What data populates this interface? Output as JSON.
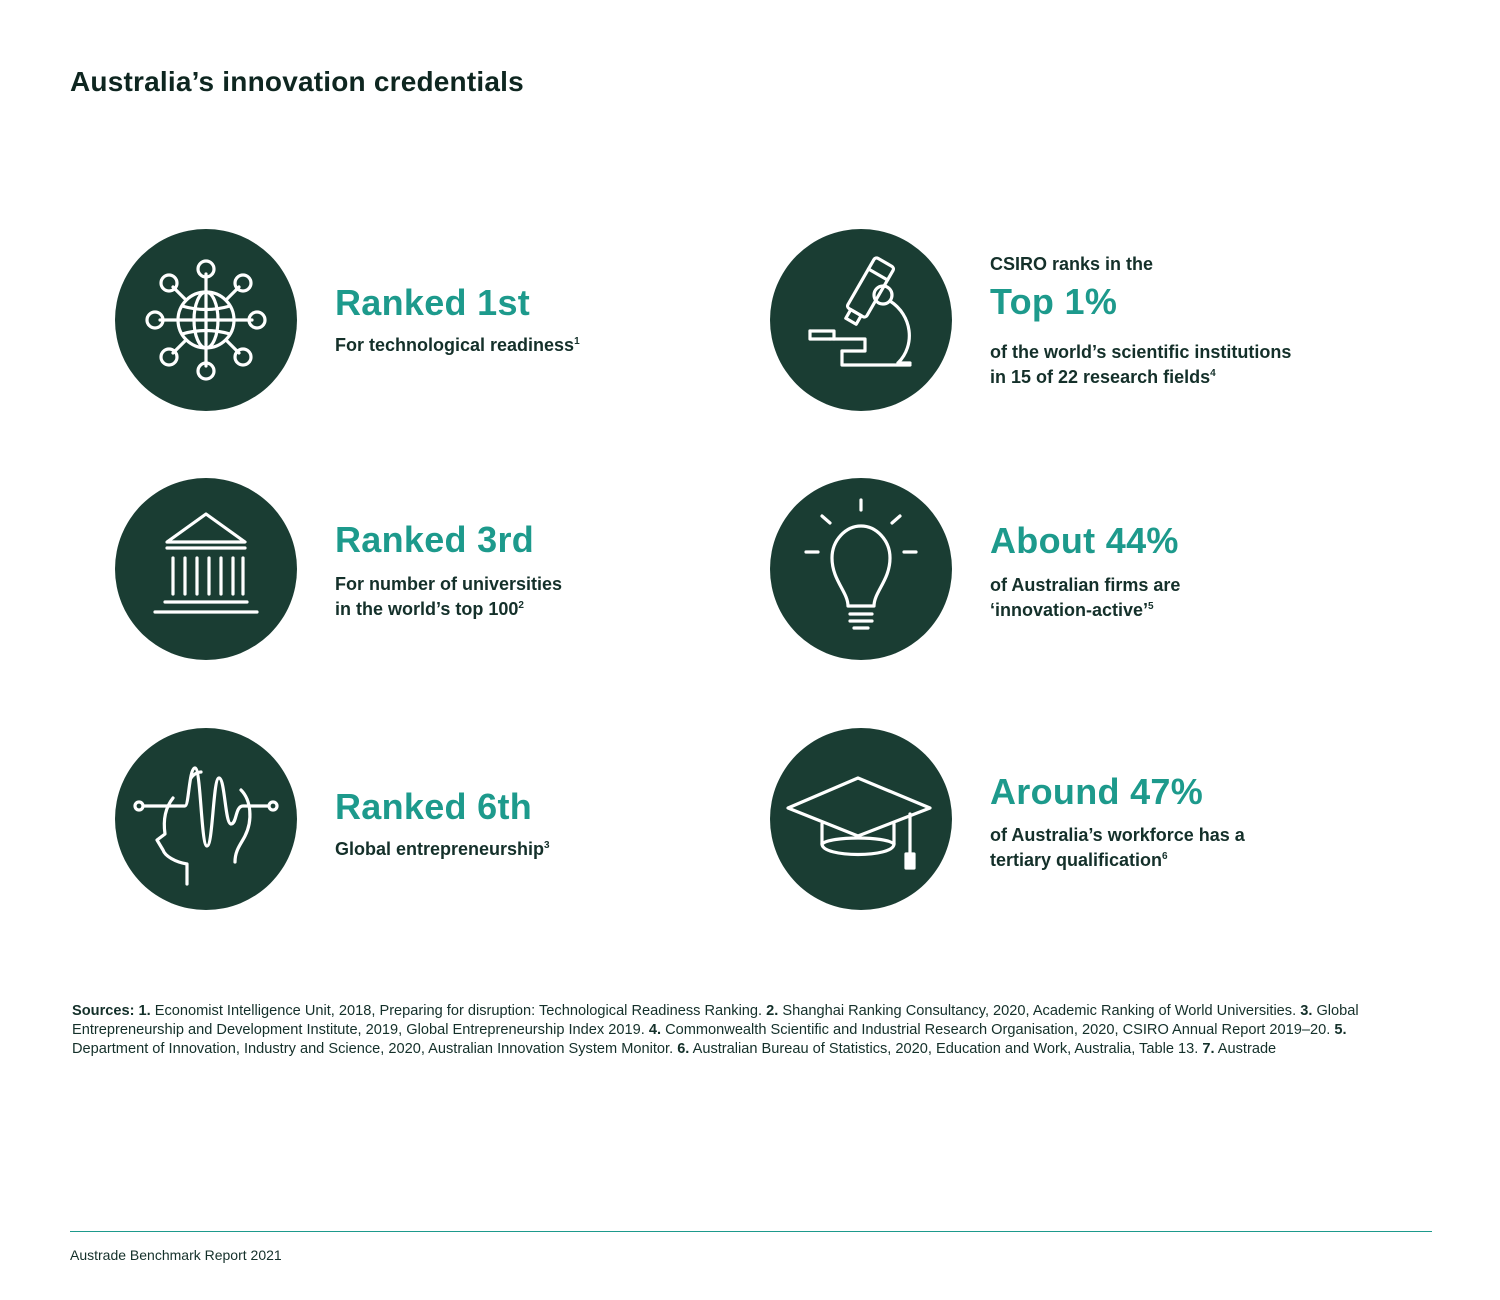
{
  "page": {
    "title": "Australia’s innovation credentials"
  },
  "colors": {
    "circle": "#1a3d33",
    "accent": "#1d9a8c",
    "text": "#14302a"
  },
  "stats": [
    {
      "icon": "network-globe-icon",
      "headline": "Ranked 1st",
      "line1": "For technological readiness",
      "ref": "1"
    },
    {
      "icon": "microscope-icon",
      "pre": "CSIRO ranks in the",
      "headline": "Top 1%",
      "line1": "of the world’s scientific institutions",
      "line2": "in 15 of 22 research fields",
      "ref": "4"
    },
    {
      "icon": "university-building-icon",
      "headline": "Ranked 3rd",
      "line1": "For number of universities",
      "line2": "in the world’s top 100",
      "ref": "2"
    },
    {
      "icon": "lightbulb-icon",
      "headline": "About 44%",
      "line1": "of Australian firms are",
      "line2": "‘innovation-active’",
      "ref": "5"
    },
    {
      "icon": "head-circuit-icon",
      "headline": "Ranked 6th",
      "line1": "Global entrepreneurship",
      "ref": "3"
    },
    {
      "icon": "graduation-cap-icon",
      "headline": "Around 47%",
      "line1": "of Australia’s workforce has a",
      "line2": "tertiary qualification",
      "ref": "6"
    }
  ],
  "sources": {
    "label": "Sources:",
    "items": [
      {
        "num": "1.",
        "text": "Economist Intelligence Unit, 2018, Preparing for disruption: Technological Readiness Ranking."
      },
      {
        "num": "2.",
        "text": "Shanghai Ranking Consultancy, 2020, Academic Ranking of World Universities."
      },
      {
        "num": "3.",
        "text": "Global Entrepreneurship and Development Institute, 2019, Global Entrepreneurship Index 2019."
      },
      {
        "num": "4.",
        "text": "Commonwealth Scientific and Industrial Research Organisation, 2020, CSIRO Annual Report 2019–20."
      },
      {
        "num": "5.",
        "text": "Department of Innovation, Industry and Science, 2020, Australian Innovation System Monitor."
      },
      {
        "num": "6.",
        "text": "Australian Bureau of Statistics, 2020, Education and Work, Australia, Table 13."
      },
      {
        "num": "7.",
        "text": "Austrade"
      }
    ]
  },
  "footer": {
    "text": "Austrade Benchmark Report 2021"
  }
}
